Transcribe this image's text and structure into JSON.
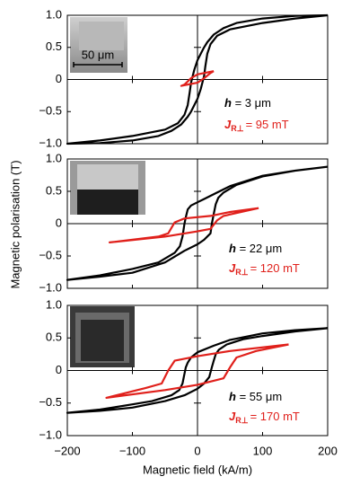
{
  "chart_data": [
    {
      "type": "line",
      "xlim": [
        -200,
        200
      ],
      "ylim": [
        -1,
        1
      ],
      "yticks": [
        {
          "value": -1,
          "label": "−1.0"
        },
        {
          "value": -0.5,
          "label": "−0.5"
        },
        0,
        0.5,
        {
          "value": 1,
          "label": "1.0"
        }
      ],
      "scale_bar_label": "50 μm",
      "h_symbol": "h",
      "h_text": " = 3 μm",
      "j_symbol": "J",
      "j_sub": "R⊥",
      "j_text": "= 95 mT",
      "annotation_color": "#e0201b",
      "series": [
        {
          "color": "#000000",
          "x": [
            200,
            150,
            100,
            60,
            40,
            25,
            15,
            10,
            5,
            0,
            -5,
            -10,
            -12,
            -15,
            -20,
            -30,
            -50,
            -100,
            -150,
            -200,
            -200,
            -150,
            -100,
            -60,
            -40,
            -25,
            -15,
            -10,
            -5,
            0,
            5,
            10,
            12,
            15,
            20,
            30,
            50,
            100,
            150,
            200
          ],
          "values": [
            1.0,
            0.99,
            0.95,
            0.88,
            0.8,
            0.7,
            0.58,
            0.5,
            0.4,
            0.3,
            0.15,
            -0.05,
            -0.2,
            -0.4,
            -0.55,
            -0.68,
            -0.78,
            -0.88,
            -0.95,
            -1.0,
            -1.0,
            -0.99,
            -0.95,
            -0.88,
            -0.8,
            -0.7,
            -0.58,
            -0.5,
            -0.4,
            -0.3,
            -0.15,
            0.05,
            0.2,
            0.4,
            0.55,
            0.68,
            0.78,
            0.88,
            0.95,
            1.0
          ]
        },
        {
          "color": "#e0201b",
          "x": [
            25,
            0,
            -10,
            -20,
            -25,
            0,
            10,
            20,
            25
          ],
          "values": [
            0.13,
            0.08,
            0.02,
            -0.08,
            -0.1,
            -0.05,
            0.02,
            0.1,
            0.13
          ]
        }
      ]
    },
    {
      "type": "line",
      "xlim": [
        -200,
        200
      ],
      "ylim": [
        -1,
        1
      ],
      "yticks": [
        {
          "value": -1,
          "label": "−1.0"
        },
        {
          "value": -0.5,
          "label": "−0.5"
        },
        0,
        0.5,
        {
          "value": 1,
          "label": "1.0"
        }
      ],
      "y_label": "Magnetic polarisation (T)",
      "h_symbol": "h",
      "h_text": " = 22 μm",
      "j_symbol": "J",
      "j_sub": "R⊥",
      "j_text": "= 120 mT",
      "annotation_color": "#e0201b",
      "series": [
        {
          "color": "#000000",
          "x": [
            200,
            150,
            100,
            50,
            30,
            10,
            0,
            -10,
            -15,
            -18,
            -20,
            -23,
            -27,
            -35,
            -60,
            -100,
            -150,
            -200,
            -200,
            -150,
            -100,
            -50,
            -20,
            0,
            10,
            20,
            22,
            25,
            28,
            32,
            40,
            60,
            100,
            150,
            200
          ],
          "values": [
            0.88,
            0.82,
            0.74,
            0.58,
            0.48,
            0.38,
            0.33,
            0.28,
            0.22,
            0.1,
            0.0,
            -0.2,
            -0.35,
            -0.45,
            -0.6,
            -0.7,
            -0.8,
            -0.87,
            -0.87,
            -0.82,
            -0.76,
            -0.6,
            -0.42,
            -0.32,
            -0.25,
            -0.15,
            0.0,
            0.15,
            0.3,
            0.4,
            0.48,
            0.6,
            0.73,
            0.82,
            0.88
          ]
        },
        {
          "color": "#e0201b",
          "x": [
            94,
            50,
            20,
            -20,
            -35,
            -45,
            -60,
            -135,
            -50,
            0,
            20,
            30,
            40,
            94
          ],
          "values": [
            0.24,
            0.18,
            0.12,
            0.08,
            0.02,
            -0.15,
            -0.2,
            -0.29,
            -0.2,
            -0.12,
            -0.08,
            0.05,
            0.12,
            0.24
          ]
        }
      ]
    },
    {
      "type": "line",
      "xlim": [
        -200,
        200
      ],
      "ylim": [
        -1,
        1
      ],
      "xticks": [
        {
          "value": -200,
          "label": "−200"
        },
        {
          "value": -100,
          "label": "−100"
        },
        0,
        100,
        200
      ],
      "yticks": [
        {
          "value": -1,
          "label": "−1.0"
        },
        {
          "value": -0.5,
          "label": "−0.5"
        },
        0,
        0.5,
        {
          "value": 1,
          "label": "1.0"
        }
      ],
      "x_label": "Magnetic field (kA/m)",
      "h_symbol": "h",
      "h_text": " = 55 μm",
      "j_symbol": "J",
      "j_sub": "R⊥",
      "j_text": "= 170 mT",
      "annotation_color": "#e0201b",
      "series": [
        {
          "color": "#000000",
          "x": [
            200,
            150,
            100,
            50,
            25,
            0,
            -10,
            -15,
            -18,
            -20,
            -23,
            -28,
            -40,
            -70,
            -100,
            -150,
            -200,
            -200,
            -150,
            -100,
            -50,
            -20,
            0,
            10,
            18,
            22,
            25,
            28,
            33,
            45,
            70,
            100,
            150,
            200
          ],
          "values": [
            0.65,
            0.62,
            0.57,
            0.47,
            0.38,
            0.28,
            0.2,
            0.12,
            0.05,
            -0.05,
            -0.2,
            -0.3,
            -0.38,
            -0.47,
            -0.52,
            -0.6,
            -0.65,
            -0.65,
            -0.62,
            -0.57,
            -0.47,
            -0.38,
            -0.28,
            -0.2,
            -0.1,
            0.05,
            0.15,
            0.25,
            0.32,
            0.4,
            0.48,
            0.53,
            0.6,
            0.65
          ]
        },
        {
          "color": "#e0201b",
          "x": [
            140,
            50,
            0,
            -35,
            -45,
            -55,
            -80,
            -140,
            -50,
            0,
            40,
            50,
            60,
            90,
            140
          ],
          "values": [
            0.4,
            0.3,
            0.22,
            0.15,
            0.0,
            -0.2,
            -0.27,
            -0.42,
            -0.3,
            -0.22,
            -0.12,
            0.05,
            0.2,
            0.3,
            0.4
          ]
        }
      ]
    }
  ]
}
